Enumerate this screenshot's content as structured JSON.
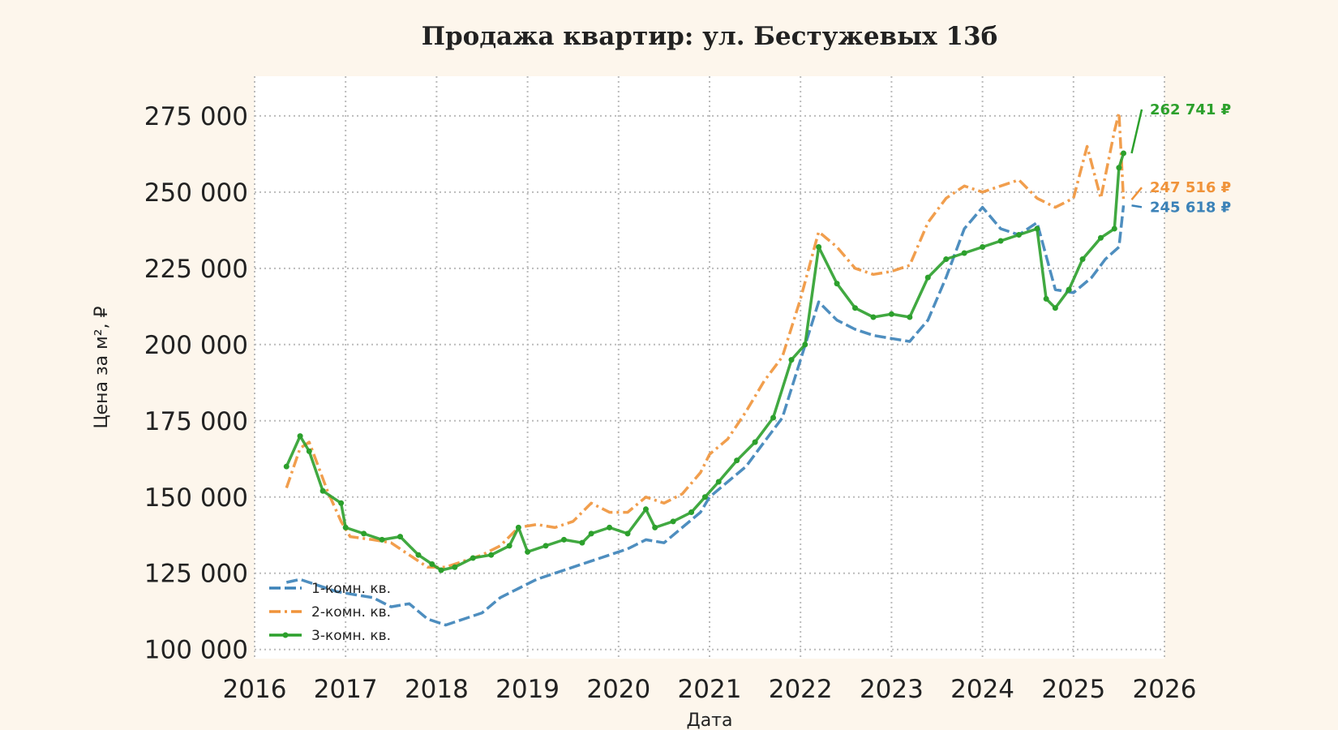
{
  "chart_data": {
    "type": "line",
    "title": "Продажа квартир: ул. Бестужевых 13б",
    "xlabel": "Дата",
    "ylabel": "Цена за м², ₽",
    "xlim": [
      2016,
      2026
    ],
    "ylim": [
      97000,
      288000
    ],
    "x_ticks": [
      2016,
      2017,
      2018,
      2019,
      2020,
      2021,
      2022,
      2023,
      2024,
      2025,
      2026
    ],
    "x_tick_labels": [
      "2016",
      "2017",
      "2018",
      "2019",
      "2020",
      "2021",
      "2022",
      "2023",
      "2024",
      "2025",
      "2026"
    ],
    "y_ticks": [
      100000,
      125000,
      150000,
      175000,
      200000,
      225000,
      250000,
      275000
    ],
    "y_tick_labels": [
      "100 000",
      "125 000",
      "150 000",
      "175 000",
      "200 000",
      "225 000",
      "250 000",
      "275 000"
    ],
    "grid": true,
    "legend_position": "bottom-left",
    "series": [
      {
        "name": "1-комн. кв.",
        "color": "#3b82b8",
        "style": "dashed",
        "end_label": "245 618 ₽",
        "points": [
          [
            2016.35,
            122000
          ],
          [
            2016.5,
            123000
          ],
          [
            2016.7,
            121000
          ],
          [
            2016.9,
            119000
          ],
          [
            2017.1,
            118000
          ],
          [
            2017.3,
            117000
          ],
          [
            2017.5,
            114000
          ],
          [
            2017.7,
            115000
          ],
          [
            2017.9,
            110000
          ],
          [
            2018.1,
            108000
          ],
          [
            2018.3,
            110000
          ],
          [
            2018.5,
            112000
          ],
          [
            2018.7,
            117000
          ],
          [
            2018.9,
            120000
          ],
          [
            2019.1,
            123000
          ],
          [
            2019.3,
            125000
          ],
          [
            2019.5,
            127000
          ],
          [
            2019.7,
            129000
          ],
          [
            2019.9,
            131000
          ],
          [
            2020.1,
            133000
          ],
          [
            2020.3,
            136000
          ],
          [
            2020.5,
            135000
          ],
          [
            2020.7,
            140000
          ],
          [
            2020.9,
            145000
          ],
          [
            2021.0,
            150000
          ],
          [
            2021.2,
            155000
          ],
          [
            2021.4,
            160000
          ],
          [
            2021.6,
            168000
          ],
          [
            2021.8,
            176000
          ],
          [
            2022.0,
            195000
          ],
          [
            2022.2,
            214000
          ],
          [
            2022.4,
            208000
          ],
          [
            2022.6,
            205000
          ],
          [
            2022.8,
            203000
          ],
          [
            2023.0,
            202000
          ],
          [
            2023.2,
            201000
          ],
          [
            2023.4,
            208000
          ],
          [
            2023.6,
            222000
          ],
          [
            2023.8,
            238000
          ],
          [
            2024.0,
            245000
          ],
          [
            2024.2,
            238000
          ],
          [
            2024.4,
            236000
          ],
          [
            2024.6,
            240000
          ],
          [
            2024.8,
            218000
          ],
          [
            2025.0,
            217000
          ],
          [
            2025.2,
            222000
          ],
          [
            2025.35,
            228000
          ],
          [
            2025.5,
            232000
          ],
          [
            2025.55,
            245618
          ]
        ]
      },
      {
        "name": "2-комн. кв.",
        "color": "#f0933a",
        "style": "dashdot",
        "end_label": "247 516 ₽",
        "points": [
          [
            2016.35,
            153000
          ],
          [
            2016.5,
            166000
          ],
          [
            2016.6,
            168000
          ],
          [
            2016.8,
            152000
          ],
          [
            2016.95,
            142000
          ],
          [
            2017.05,
            137000
          ],
          [
            2017.3,
            136000
          ],
          [
            2017.5,
            135000
          ],
          [
            2017.7,
            131000
          ],
          [
            2017.9,
            127000
          ],
          [
            2018.1,
            127000
          ],
          [
            2018.3,
            129000
          ],
          [
            2018.5,
            131000
          ],
          [
            2018.7,
            134000
          ],
          [
            2018.9,
            140000
          ],
          [
            2019.1,
            141000
          ],
          [
            2019.3,
            140000
          ],
          [
            2019.5,
            142000
          ],
          [
            2019.7,
            148000
          ],
          [
            2019.9,
            145000
          ],
          [
            2020.1,
            145000
          ],
          [
            2020.3,
            150000
          ],
          [
            2020.5,
            148000
          ],
          [
            2020.7,
            151000
          ],
          [
            2020.9,
            158000
          ],
          [
            2021.0,
            164000
          ],
          [
            2021.2,
            169000
          ],
          [
            2021.4,
            178000
          ],
          [
            2021.6,
            188000
          ],
          [
            2021.8,
            196000
          ],
          [
            2022.0,
            215000
          ],
          [
            2022.2,
            237000
          ],
          [
            2022.4,
            232000
          ],
          [
            2022.6,
            225000
          ],
          [
            2022.8,
            223000
          ],
          [
            2023.0,
            224000
          ],
          [
            2023.2,
            226000
          ],
          [
            2023.4,
            240000
          ],
          [
            2023.6,
            248000
          ],
          [
            2023.8,
            252000
          ],
          [
            2024.0,
            250000
          ],
          [
            2024.2,
            252000
          ],
          [
            2024.4,
            254000
          ],
          [
            2024.6,
            248000
          ],
          [
            2024.8,
            245000
          ],
          [
            2025.0,
            248000
          ],
          [
            2025.15,
            265000
          ],
          [
            2025.3,
            248000
          ],
          [
            2025.45,
            270000
          ],
          [
            2025.5,
            276000
          ],
          [
            2025.55,
            247516
          ]
        ]
      },
      {
        "name": "3-комн. кв.",
        "color": "#2ca02c",
        "style": "solid-marker",
        "end_label": "262 741 ₽",
        "points": [
          [
            2016.35,
            160000
          ],
          [
            2016.5,
            170000
          ],
          [
            2016.6,
            165000
          ],
          [
            2016.75,
            152000
          ],
          [
            2016.95,
            148000
          ],
          [
            2017.0,
            140000
          ],
          [
            2017.2,
            138000
          ],
          [
            2017.4,
            136000
          ],
          [
            2017.6,
            137000
          ],
          [
            2017.8,
            131000
          ],
          [
            2017.95,
            128000
          ],
          [
            2018.05,
            126000
          ],
          [
            2018.2,
            127000
          ],
          [
            2018.4,
            130000
          ],
          [
            2018.6,
            131000
          ],
          [
            2018.8,
            134000
          ],
          [
            2018.9,
            140000
          ],
          [
            2019.0,
            132000
          ],
          [
            2019.2,
            134000
          ],
          [
            2019.4,
            136000
          ],
          [
            2019.6,
            135000
          ],
          [
            2019.7,
            138000
          ],
          [
            2019.9,
            140000
          ],
          [
            2020.1,
            138000
          ],
          [
            2020.3,
            146000
          ],
          [
            2020.4,
            140000
          ],
          [
            2020.6,
            142000
          ],
          [
            2020.8,
            145000
          ],
          [
            2020.95,
            150000
          ],
          [
            2021.1,
            155000
          ],
          [
            2021.3,
            162000
          ],
          [
            2021.5,
            168000
          ],
          [
            2021.7,
            176000
          ],
          [
            2021.9,
            195000
          ],
          [
            2022.05,
            200000
          ],
          [
            2022.2,
            232000
          ],
          [
            2022.4,
            220000
          ],
          [
            2022.6,
            212000
          ],
          [
            2022.8,
            209000
          ],
          [
            2023.0,
            210000
          ],
          [
            2023.2,
            209000
          ],
          [
            2023.4,
            222000
          ],
          [
            2023.6,
            228000
          ],
          [
            2023.8,
            230000
          ],
          [
            2024.0,
            232000
          ],
          [
            2024.2,
            234000
          ],
          [
            2024.4,
            236000
          ],
          [
            2024.6,
            238000
          ],
          [
            2024.7,
            215000
          ],
          [
            2024.8,
            212000
          ],
          [
            2024.95,
            218000
          ],
          [
            2025.1,
            228000
          ],
          [
            2025.3,
            235000
          ],
          [
            2025.45,
            238000
          ],
          [
            2025.5,
            258000
          ],
          [
            2025.55,
            262741
          ]
        ]
      }
    ]
  }
}
